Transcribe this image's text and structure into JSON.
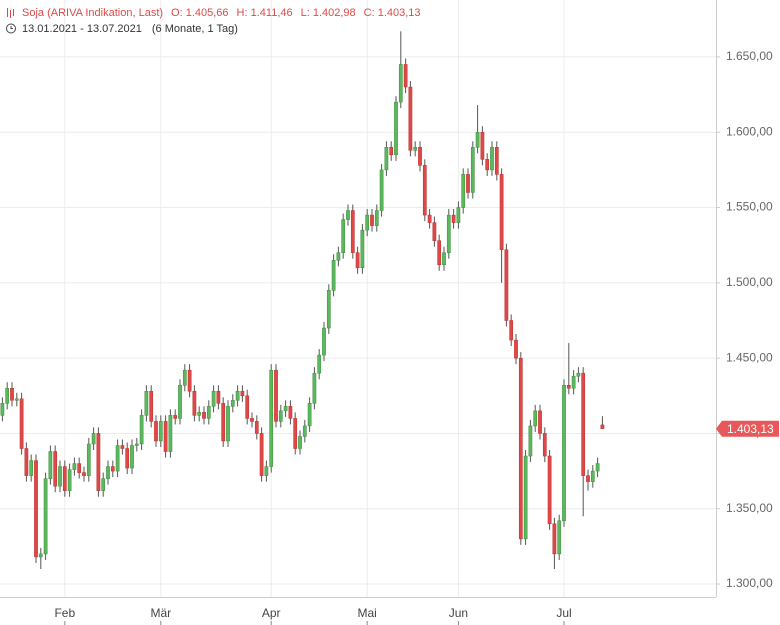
{
  "header": {
    "title": "Soja (ARIVA Indikation, Last)",
    "ohlc": [
      "O: 1.405,66",
      "H: 1.411,46",
      "L: 1.402,98",
      "C: 1.403,13"
    ],
    "range": "13.01.2021 - 13.07.2021",
    "period": "(6 Monate, 1 Tag)"
  },
  "chart_data": {
    "type": "candlestick",
    "categories": [
      null,
      null,
      null,
      null,
      null,
      null,
      null,
      null,
      null,
      null,
      null,
      null,
      null,
      "Feb",
      null,
      null,
      null,
      null,
      null,
      null,
      null,
      null,
      null,
      null,
      null,
      null,
      null,
      null,
      null,
      null,
      null,
      null,
      null,
      "Mär",
      null,
      null,
      null,
      null,
      null,
      null,
      null,
      null,
      null,
      null,
      null,
      null,
      null,
      null,
      null,
      null,
      null,
      null,
      null,
      null,
      null,
      null,
      "Apr",
      null,
      null,
      null,
      null,
      null,
      null,
      null,
      null,
      null,
      null,
      null,
      null,
      null,
      null,
      null,
      null,
      null,
      null,
      null,
      "Mai",
      null,
      null,
      null,
      null,
      null,
      null,
      null,
      null,
      null,
      null,
      null,
      null,
      null,
      null,
      null,
      null,
      null,
      null,
      "Jun",
      null,
      null,
      null,
      null,
      null,
      null,
      null,
      null,
      null,
      null,
      null,
      null,
      null,
      null,
      null,
      null,
      null,
      null,
      null,
      null,
      null,
      "Jul",
      null,
      null,
      null,
      null,
      null,
      null,
      null,
      null
    ],
    "open": [
      1412,
      1420,
      1430,
      1422,
      1423,
      1390,
      1372,
      1382,
      1318,
      1320,
      1370,
      1388,
      1365,
      1378,
      1362,
      1376,
      1380,
      1374,
      1372,
      1393,
      1400,
      1362,
      1370,
      1378,
      1375,
      1392,
      1390,
      1377,
      1392,
      1393,
      1412,
      1428,
      1408,
      1395,
      1408,
      1388,
      1412,
      1410,
      1432,
      1442,
      1428,
      1412,
      1414,
      1410,
      1418,
      1428,
      1420,
      1395,
      1418,
      1422,
      1428,
      1425,
      1410,
      1408,
      1400,
      1372,
      1378,
      1442,
      1408,
      1415,
      1418,
      1410,
      1390,
      1398,
      1405,
      1420,
      1440,
      1452,
      1470,
      1495,
      1515,
      1520,
      1542,
      1548,
      1520,
      1510,
      1535,
      1545,
      1538,
      1548,
      1575,
      1590,
      1585,
      1620,
      1645,
      1630,
      1588,
      1590,
      1578,
      1545,
      1540,
      1528,
      1512,
      1520,
      1545,
      1540,
      1550,
      1572,
      1560,
      1590,
      1600,
      1582,
      1575,
      1590,
      1572,
      1522,
      1475,
      1462,
      1450,
      1330,
      1385,
      1405,
      1415,
      1400,
      1385,
      1340,
      1320,
      1342,
      1432,
      1430,
      1438,
      1440,
      1372,
      1368,
      1375,
      1405.66
    ],
    "high": [
      1424,
      1434,
      1434,
      1427,
      1427,
      1394,
      1386,
      1386,
      1324,
      1374,
      1392,
      1392,
      1382,
      1382,
      1380,
      1384,
      1384,
      1378,
      1397,
      1404,
      1404,
      1374,
      1382,
      1382,
      1396,
      1396,
      1394,
      1396,
      1397,
      1416,
      1432,
      1432,
      1412,
      1412,
      1412,
      1416,
      1416,
      1436,
      1446,
      1446,
      1432,
      1418,
      1418,
      1422,
      1432,
      1432,
      1424,
      1422,
      1426,
      1432,
      1432,
      1429,
      1414,
      1412,
      1404,
      1382,
      1446,
      1446,
      1419,
      1422,
      1422,
      1414,
      1402,
      1409,
      1424,
      1444,
      1456,
      1474,
      1499,
      1519,
      1524,
      1546,
      1552,
      1552,
      1524,
      1539,
      1549,
      1549,
      1552,
      1579,
      1594,
      1594,
      1624,
      1667,
      1649,
      1634,
      1594,
      1594,
      1582,
      1549,
      1544,
      1532,
      1524,
      1549,
      1549,
      1554,
      1576,
      1576,
      1594,
      1618,
      1604,
      1586,
      1594,
      1594,
      1576,
      1526,
      1479,
      1466,
      1454,
      1389,
      1409,
      1419,
      1419,
      1404,
      1389,
      1344,
      1346,
      1436,
      1460,
      1442,
      1444,
      1444,
      1376,
      1379,
      1384,
      1411.46
    ],
    "low": [
      1408,
      1416,
      1418,
      1418,
      1386,
      1368,
      1368,
      1314,
      1310,
      1316,
      1366,
      1361,
      1361,
      1358,
      1358,
      1372,
      1370,
      1368,
      1368,
      1389,
      1358,
      1358,
      1366,
      1371,
      1371,
      1386,
      1373,
      1373,
      1388,
      1389,
      1408,
      1404,
      1391,
      1391,
      1384,
      1384,
      1406,
      1406,
      1428,
      1424,
      1408,
      1408,
      1406,
      1406,
      1414,
      1416,
      1391,
      1391,
      1414,
      1418,
      1421,
      1406,
      1404,
      1396,
      1368,
      1368,
      1374,
      1404,
      1404,
      1411,
      1406,
      1386,
      1386,
      1394,
      1401,
      1416,
      1436,
      1448,
      1466,
      1491,
      1511,
      1516,
      1538,
      1516,
      1506,
      1506,
      1531,
      1534,
      1534,
      1544,
      1571,
      1581,
      1581,
      1616,
      1626,
      1584,
      1584,
      1574,
      1541,
      1536,
      1524,
      1508,
      1508,
      1516,
      1536,
      1536,
      1546,
      1556,
      1556,
      1586,
      1578,
      1571,
      1571,
      1568,
      1500,
      1471,
      1458,
      1446,
      1326,
      1326,
      1381,
      1401,
      1396,
      1381,
      1336,
      1310,
      1316,
      1338,
      1426,
      1426,
      1434,
      1345,
      1362,
      1364,
      1371,
      1402.98
    ],
    "close": [
      1420,
      1430,
      1422,
      1423,
      1390,
      1372,
      1382,
      1318,
      1320,
      1370,
      1388,
      1365,
      1378,
      1362,
      1376,
      1380,
      1374,
      1372,
      1393,
      1400,
      1362,
      1370,
      1378,
      1375,
      1392,
      1390,
      1377,
      1392,
      1393,
      1412,
      1428,
      1408,
      1395,
      1408,
      1388,
      1412,
      1410,
      1432,
      1442,
      1428,
      1412,
      1414,
      1410,
      1418,
      1428,
      1420,
      1395,
      1418,
      1422,
      1428,
      1425,
      1410,
      1408,
      1400,
      1372,
      1378,
      1442,
      1408,
      1415,
      1418,
      1410,
      1390,
      1398,
      1405,
      1420,
      1440,
      1452,
      1470,
      1495,
      1515,
      1520,
      1542,
      1548,
      1520,
      1510,
      1535,
      1545,
      1538,
      1548,
      1575,
      1590,
      1585,
      1620,
      1645,
      1630,
      1588,
      1590,
      1578,
      1545,
      1540,
      1528,
      1512,
      1520,
      1545,
      1540,
      1550,
      1572,
      1560,
      1590,
      1600,
      1582,
      1575,
      1590,
      1572,
      1522,
      1475,
      1462,
      1450,
      1330,
      1385,
      1405,
      1415,
      1400,
      1385,
      1340,
      1320,
      1342,
      1432,
      1430,
      1438,
      1440,
      1372,
      1368,
      1375,
      1380,
      1403.13
    ],
    "up_color": "#5cb85c",
    "down_color": "#e04848",
    "last_price": {
      "value": 1403.13,
      "label": "1.403,13"
    },
    "ylim": [
      1291.4,
      1687.8
    ],
    "yticks": [
      {
        "value": 1300,
        "label": "1.300,00"
      },
      {
        "value": 1350,
        "label": "1.350,00"
      },
      {
        "value": 1400,
        "label": "1.400,00"
      },
      {
        "value": 1450,
        "label": "1.450,00"
      },
      {
        "value": 1500,
        "label": "1.500,00"
      },
      {
        "value": 1550,
        "label": "1.550,00"
      },
      {
        "value": 1600,
        "label": "1.600,00"
      },
      {
        "value": 1650,
        "label": "1.650,00"
      }
    ],
    "grid": true
  }
}
